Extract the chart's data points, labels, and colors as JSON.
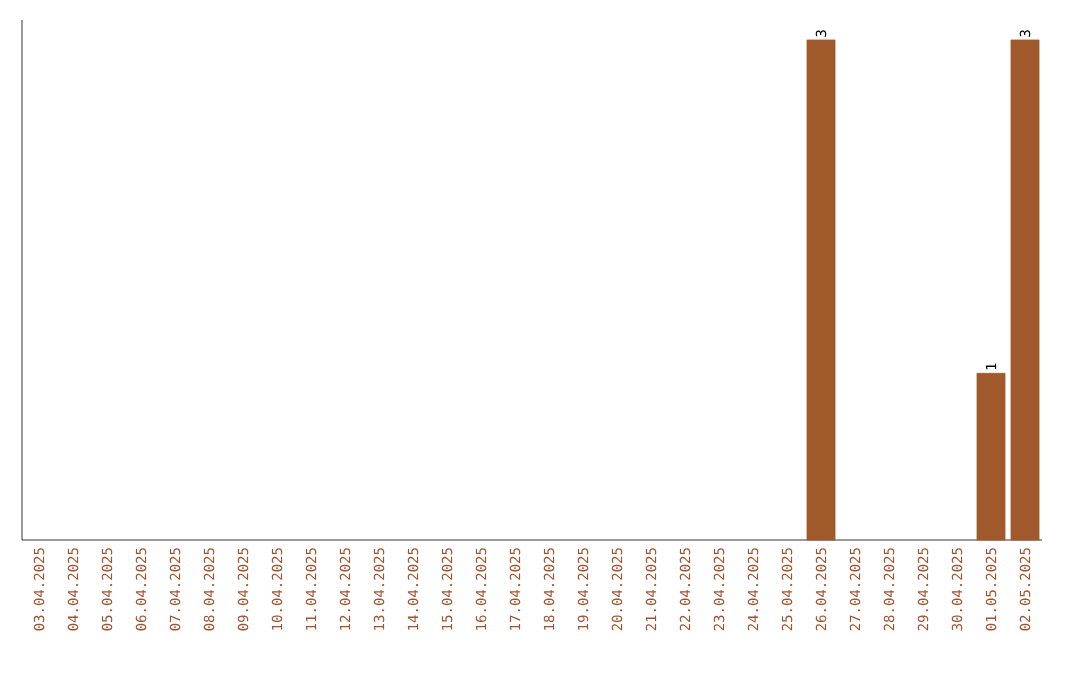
{
  "chart_data": {
    "type": "bar",
    "categories": [
      "03.04.2025",
      "04.04.2025",
      "05.04.2025",
      "06.04.2025",
      "07.04.2025",
      "08.04.2025",
      "09.04.2025",
      "10.04.2025",
      "11.04.2025",
      "12.04.2025",
      "13.04.2025",
      "14.04.2025",
      "15.04.2025",
      "16.04.2025",
      "17.04.2025",
      "18.04.2025",
      "19.04.2025",
      "20.04.2025",
      "21.04.2025",
      "22.04.2025",
      "23.04.2025",
      "24.04.2025",
      "25.04.2025",
      "26.04.2025",
      "27.04.2025",
      "28.04.2025",
      "29.04.2025",
      "30.04.2025",
      "01.05.2025",
      "02.05.2025"
    ],
    "values": [
      null,
      null,
      null,
      null,
      null,
      null,
      null,
      null,
      null,
      null,
      null,
      null,
      null,
      null,
      null,
      null,
      null,
      null,
      null,
      null,
      null,
      null,
      null,
      3,
      null,
      null,
      null,
      null,
      1,
      3
    ],
    "value_labels": [
      null,
      null,
      null,
      null,
      null,
      null,
      null,
      null,
      null,
      null,
      null,
      null,
      null,
      null,
      null,
      null,
      null,
      null,
      null,
      null,
      null,
      null,
      null,
      "3",
      null,
      null,
      null,
      null,
      "1",
      "3"
    ],
    "color": "#a0592a",
    "grid": false
  }
}
